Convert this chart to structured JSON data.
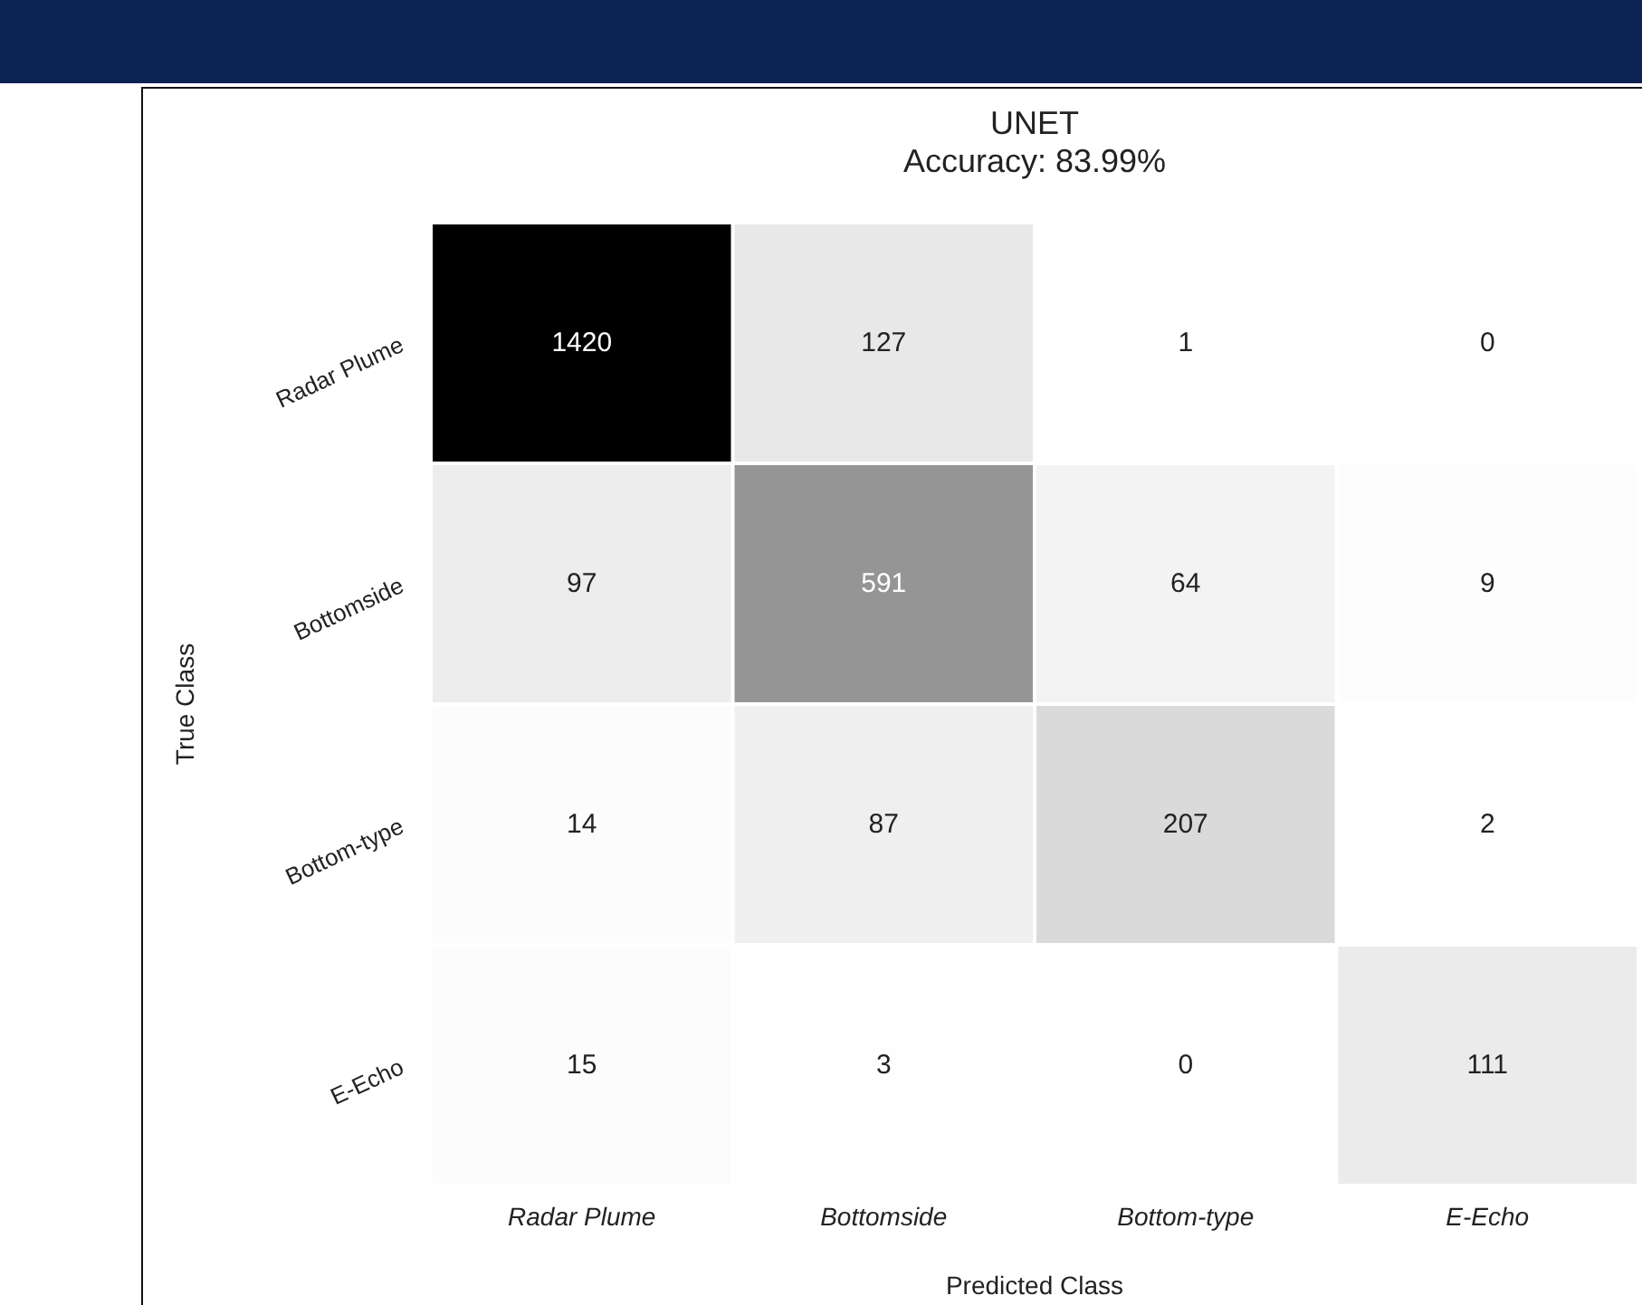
{
  "chart_data": {
    "type": "heatmap",
    "title": "UNET",
    "subtitle": "Accuracy: 83.99%",
    "xlabel": "Predicted Class",
    "ylabel": "True Class",
    "categories": [
      "Radar Plume",
      "Bottomside",
      "Bottom-type",
      "E-Echo"
    ],
    "y_categories": [
      "Radar Plume",
      "Bottomside",
      "Bottom-type",
      "E-Echo"
    ],
    "cells": [
      [
        1420,
        127,
        1,
        0
      ],
      [
        97,
        591,
        64,
        9
      ],
      [
        14,
        87,
        207,
        2
      ],
      [
        15,
        3,
        0,
        111
      ]
    ],
    "data_labels": true
  }
}
